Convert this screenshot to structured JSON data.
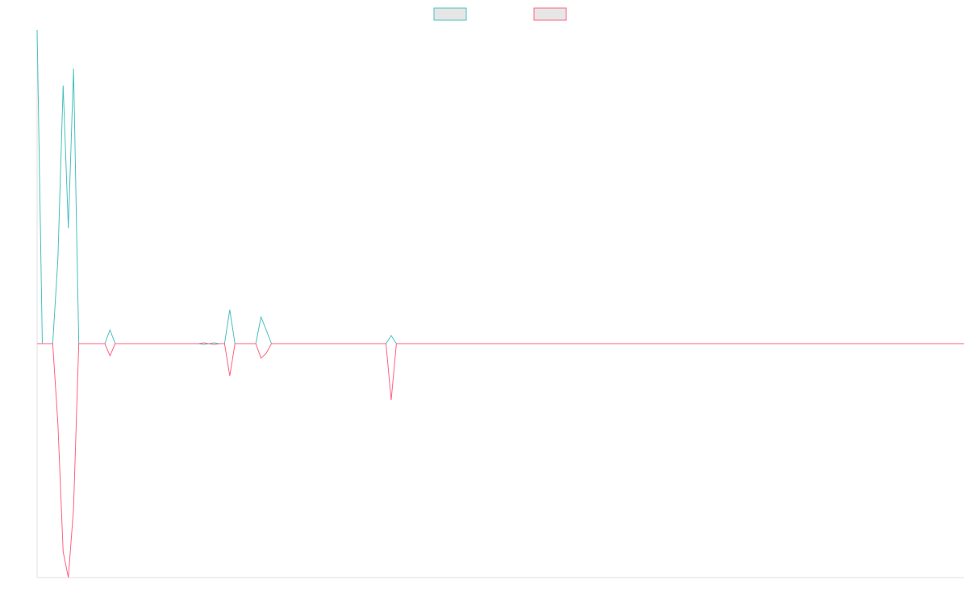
{
  "chart_data": {
    "type": "line",
    "ylim": [
      -290,
      389
    ],
    "legend": "top",
    "legend_box_fill": "#e6e6e6",
    "series": [
      {
        "color": "#4bc0c0",
        "values": [
          389,
          0,
          0,
          0,
          106,
          320,
          143,
          341,
          0,
          0,
          0,
          0,
          0,
          0,
          17,
          0,
          0,
          0,
          0,
          0,
          0,
          0,
          0,
          0,
          0,
          0,
          0,
          0,
          0,
          0,
          0,
          0,
          -1,
          0,
          1,
          0,
          0,
          42,
          0,
          0,
          0,
          0,
          0,
          33,
          17,
          0,
          0,
          0,
          0,
          0,
          0,
          0,
          0,
          0,
          0,
          0,
          0,
          0,
          0,
          0,
          0,
          0,
          0,
          0,
          0,
          0,
          0,
          0,
          10,
          0,
          0,
          0,
          0,
          0,
          0,
          0,
          0,
          0,
          0,
          0,
          0,
          0,
          0,
          0,
          0,
          0,
          0,
          0,
          0,
          0,
          0,
          0,
          0,
          0,
          0,
          0,
          0,
          0,
          0,
          0,
          0,
          0,
          0,
          0,
          0,
          0,
          0,
          0,
          0,
          0,
          0,
          0,
          0,
          0,
          0,
          0,
          0,
          0,
          0,
          0,
          0,
          0,
          0,
          0,
          0,
          0,
          0,
          0,
          0,
          0,
          0,
          0,
          0,
          0,
          0,
          0,
          0,
          0,
          0,
          0,
          0,
          0,
          0,
          0,
          0,
          0,
          0,
          0,
          0,
          0,
          0,
          0,
          0,
          0,
          0,
          0,
          0,
          0,
          0,
          0,
          0,
          0,
          0,
          0,
          0,
          0,
          0,
          0,
          0,
          0,
          0,
          0,
          0,
          0,
          0,
          0,
          0,
          0,
          0
        ]
      },
      {
        "color": "#ff6384",
        "values": [
          0,
          0,
          0,
          0,
          -100,
          -258,
          -290,
          -204,
          0,
          0,
          0,
          0,
          0,
          0,
          -15,
          0,
          0,
          0,
          0,
          0,
          0,
          0,
          0,
          0,
          0,
          0,
          0,
          0,
          0,
          0,
          0,
          0,
          1,
          0,
          -1,
          0,
          0,
          -40,
          0,
          0,
          0,
          0,
          0,
          -18,
          -12,
          0,
          0,
          0,
          0,
          0,
          0,
          0,
          0,
          0,
          0,
          0,
          0,
          0,
          0,
          0,
          0,
          0,
          0,
          0,
          0,
          0,
          0,
          0,
          -70,
          0,
          0,
          0,
          0,
          0,
          0,
          0,
          0,
          0,
          0,
          0,
          0,
          0,
          0,
          0,
          0,
          0,
          0,
          0,
          0,
          0,
          0,
          0,
          0,
          0,
          0,
          0,
          0,
          0,
          0,
          0,
          0,
          0,
          0,
          0,
          0,
          0,
          0,
          0,
          0,
          0,
          0,
          0,
          0,
          0,
          0,
          0,
          0,
          0,
          0,
          0,
          0,
          0,
          0,
          0,
          0,
          0,
          0,
          0,
          0,
          0,
          0,
          0,
          0,
          0,
          0,
          0,
          0,
          0,
          0,
          0,
          0,
          0,
          0,
          0,
          0,
          0,
          0,
          0,
          0,
          0,
          0,
          0,
          0,
          0,
          0,
          0,
          0,
          0,
          0,
          0,
          0,
          0,
          0,
          0,
          0,
          0,
          0,
          0,
          0,
          0,
          0,
          0,
          0,
          0,
          0,
          0,
          0,
          0,
          0
        ]
      }
    ]
  }
}
